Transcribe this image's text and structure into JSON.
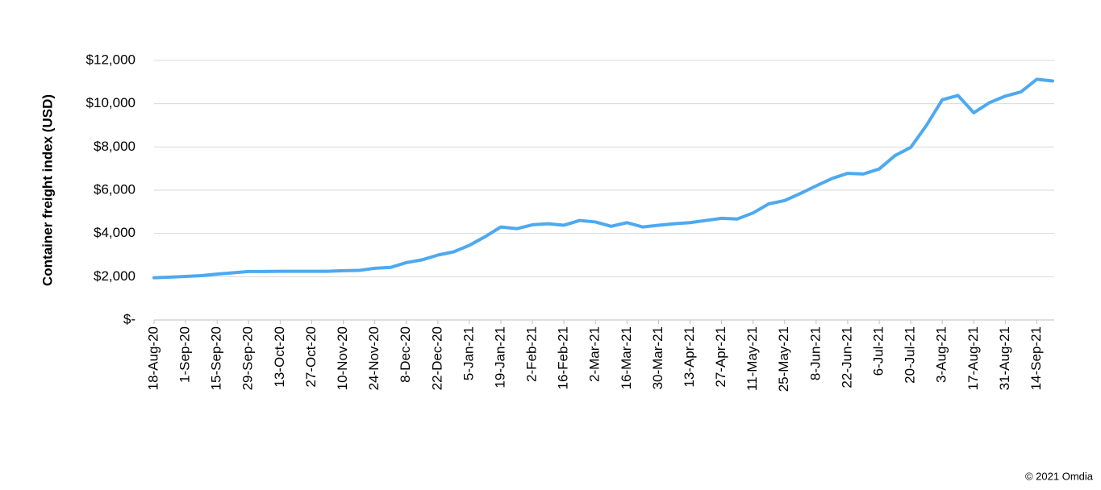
{
  "chart_data": {
    "type": "line",
    "y_axis_label": "Container freight index (USD)",
    "source": "© 2021 Omdia",
    "categories": [
      "18-Aug-20",
      null,
      "1-Sep-20",
      null,
      "15-Sep-20",
      null,
      "29-Sep-20",
      null,
      "13-Oct-20",
      null,
      "27-Oct-20",
      null,
      "10-Nov-20",
      null,
      "24-Nov-20",
      null,
      "8-Dec-20",
      null,
      "22-Dec-20",
      null,
      "5-Jan-21",
      null,
      "19-Jan-21",
      null,
      "2-Feb-21",
      null,
      "16-Feb-21",
      null,
      "2-Mar-21",
      null,
      "16-Mar-21",
      null,
      "30-Mar-21",
      null,
      "13-Apr-21",
      null,
      "27-Apr-21",
      null,
      "11-May-21",
      null,
      "25-May-21",
      null,
      "8-Jun-21",
      null,
      "22-Jun-21",
      null,
      "6-Jul-21",
      null,
      "20-Jul-21",
      null,
      "3-Aug-21",
      null,
      "17-Aug-21",
      null,
      "31-Aug-21",
      null,
      "14-Sep-21",
      null
    ],
    "values": [
      1950,
      1980,
      2010,
      2050,
      2120,
      2180,
      2240,
      2240,
      2250,
      2250,
      2250,
      2250,
      2280,
      2290,
      2390,
      2430,
      2650,
      2780,
      3000,
      3150,
      3450,
      3850,
      4300,
      4220,
      4400,
      4450,
      4380,
      4600,
      4530,
      4330,
      4500,
      4300,
      4380,
      4450,
      4500,
      4600,
      4700,
      4670,
      4950,
      5370,
      5520,
      5850,
      6200,
      6540,
      6780,
      6750,
      6980,
      7600,
      7980,
      9000,
      10180,
      10380,
      9580,
      10050,
      10350,
      10550,
      11130,
      11050
    ],
    "color": "#4da9f0",
    "ylim": [
      0,
      12000
    ],
    "yticks": [
      {
        "value": 0,
        "label": "$-"
      },
      {
        "value": 2000,
        "label": "$2,000"
      },
      {
        "value": 4000,
        "label": "$4,000"
      },
      {
        "value": 6000,
        "label": "$6,000"
      },
      {
        "value": 8000,
        "label": "$8,000"
      },
      {
        "value": 10000,
        "label": "$10,000"
      },
      {
        "value": 12000,
        "label": "$12,000"
      }
    ],
    "grid": true
  }
}
